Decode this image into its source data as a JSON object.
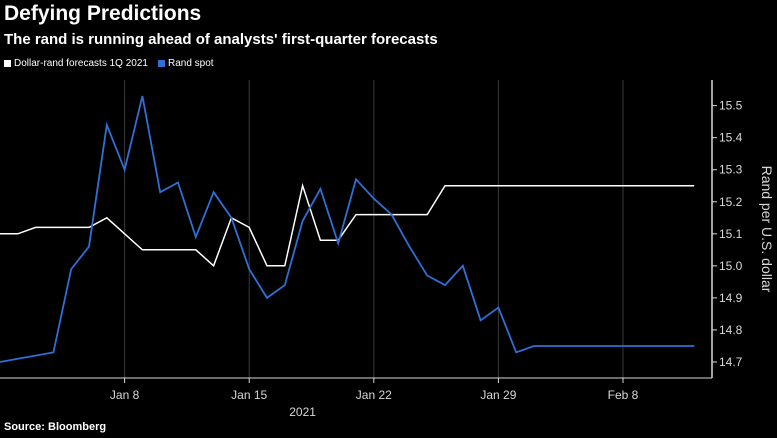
{
  "colors": {
    "background": "#000000",
    "forecast_line": "#ffffff",
    "spot_line": "#2f6fd6",
    "grid": "#3a3a3a",
    "axis": "#d8d8d8"
  },
  "source": "Source: Bloomberg",
  "chart_data": {
    "type": "line",
    "title": "Defying Predictions",
    "subtitle": "The rand is running ahead of analysts' first-quarter forecasts",
    "ylabel": "Rand per U.S. dollar",
    "xlabel": "2021",
    "ylim": [
      14.65,
      15.58
    ],
    "xlim": [
      0,
      40
    ],
    "yticks": [
      14.7,
      14.8,
      14.9,
      15.0,
      15.1,
      15.2,
      15.3,
      15.4,
      15.5
    ],
    "ytick_labels": [
      "14.7",
      "14.8",
      "14.9",
      "15.0",
      "15.1",
      "15.2",
      "15.3",
      "15.4",
      "15.5"
    ],
    "xticks": [
      7,
      14,
      21,
      28,
      35
    ],
    "xtick_labels": [
      "Jan 8",
      "Jan 15",
      "Jan 22",
      "Jan 29",
      "Feb 8"
    ],
    "grid": true,
    "legend_position": "top-left",
    "series": [
      {
        "name": "Dollar-rand forecasts 1Q 2021",
        "color": "#ffffff",
        "x": [
          0,
          1,
          2,
          3,
          4,
          5,
          6,
          7,
          8,
          9,
          10,
          11,
          12,
          13,
          14,
          15,
          16,
          17,
          18,
          19,
          20,
          21,
          22,
          23,
          24,
          25,
          26,
          27,
          28,
          29,
          30,
          31,
          32,
          33,
          34,
          35,
          36,
          37,
          38,
          39
        ],
        "values": [
          15.1,
          15.1,
          15.12,
          15.12,
          15.12,
          15.12,
          15.15,
          15.1,
          15.05,
          15.05,
          15.05,
          15.05,
          15.0,
          15.15,
          15.12,
          15.0,
          15.0,
          15.25,
          15.08,
          15.08,
          15.16,
          15.16,
          15.16,
          15.16,
          15.16,
          15.25,
          15.25,
          15.25,
          15.25,
          15.25,
          15.25,
          15.25,
          15.25,
          15.25,
          15.25,
          15.25,
          15.25,
          15.25,
          15.25,
          15.25
        ]
      },
      {
        "name": "Rand spot",
        "color": "#2f6fd6",
        "x": [
          0,
          1,
          2,
          3,
          4,
          5,
          6,
          7,
          8,
          9,
          10,
          11,
          12,
          13,
          14,
          15,
          16,
          17,
          18,
          19,
          20,
          21,
          22,
          23,
          24,
          25,
          26,
          27,
          28,
          29,
          30,
          31,
          32,
          33,
          34,
          35,
          36,
          37,
          38,
          39
        ],
        "values": [
          14.7,
          14.71,
          14.72,
          14.73,
          14.99,
          15.06,
          15.44,
          15.3,
          15.53,
          15.23,
          15.26,
          15.09,
          15.23,
          15.15,
          14.99,
          14.9,
          14.94,
          15.14,
          15.24,
          15.07,
          15.27,
          15.21,
          15.16,
          15.06,
          14.97,
          14.94,
          15.0,
          14.83,
          14.87,
          14.73,
          14.75,
          14.75,
          14.75,
          14.75,
          14.75,
          14.75,
          14.75,
          14.75,
          14.75,
          14.75
        ]
      }
    ]
  }
}
